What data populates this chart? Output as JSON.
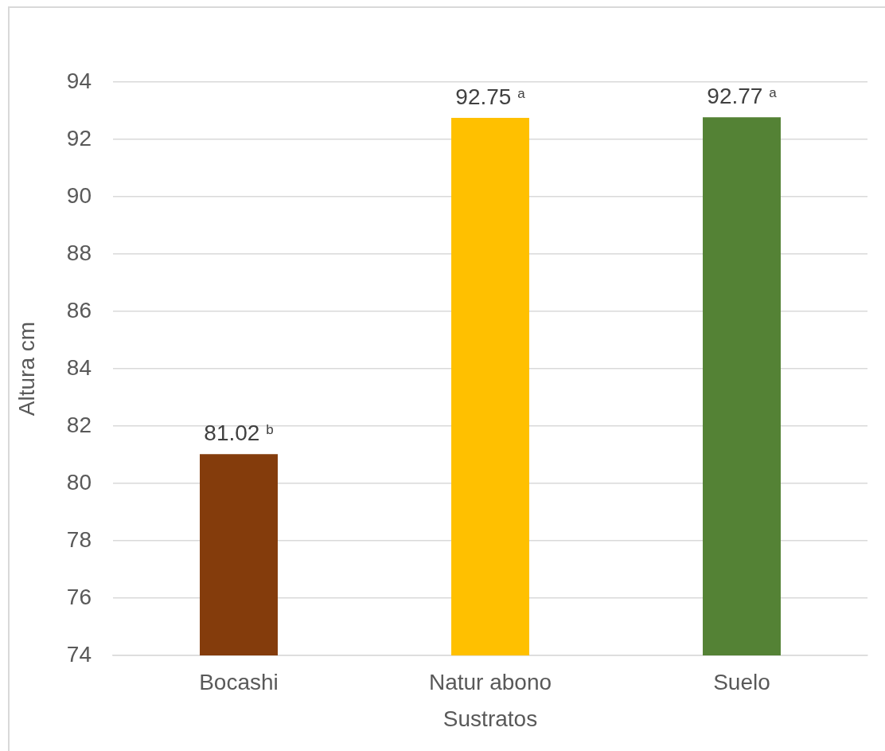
{
  "chart_data": {
    "type": "bar",
    "xlabel": "Sustratos",
    "ylabel": "Altura cm",
    "categories": [
      "Bocashi",
      "Natur abono",
      "Suelo"
    ],
    "values": [
      81.02,
      92.75,
      92.77
    ],
    "colors": [
      "#843c0c",
      "#ffc000",
      "#548235"
    ],
    "value_labels": [
      "81.02 $^{b}$",
      "92.75 $^{a}$",
      "92.77 $^{a}$"
    ],
    "ylim": [
      74,
      94
    ],
    "yticks": [
      74,
      76,
      78,
      80,
      82,
      84,
      86,
      88,
      90,
      92,
      94
    ],
    "grid": "y"
  }
}
